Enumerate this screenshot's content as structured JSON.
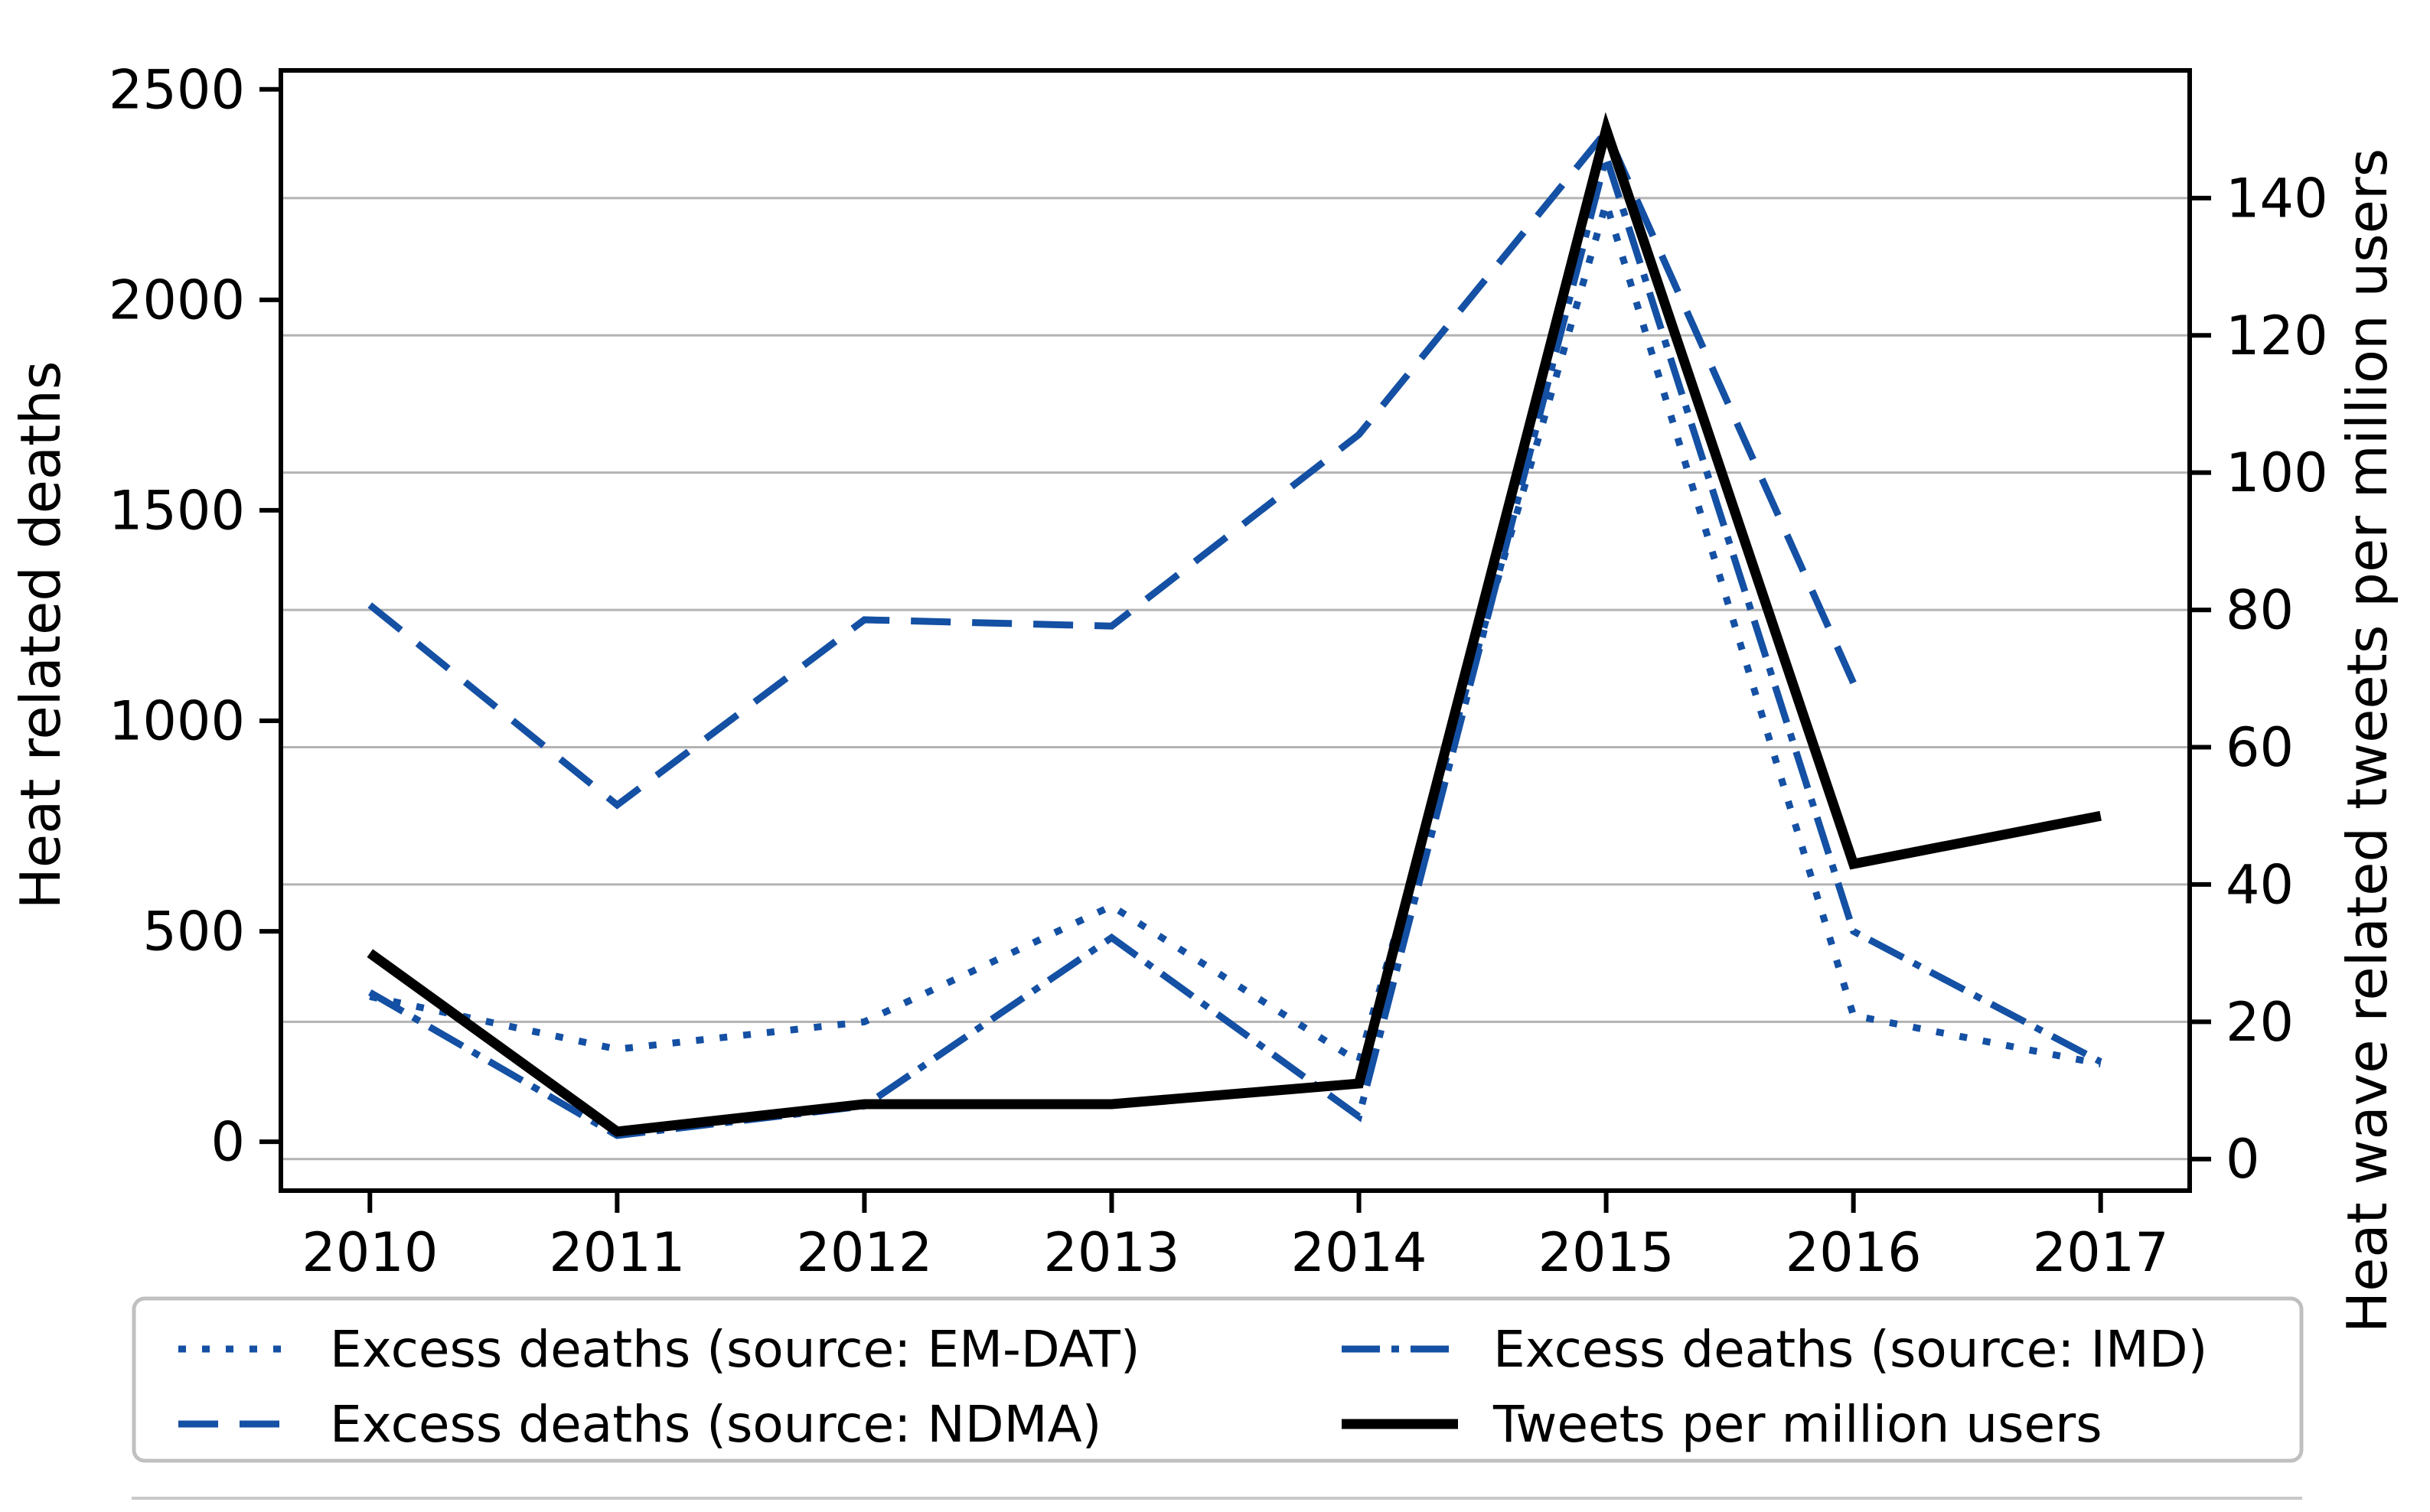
{
  "page": {
    "background": "#ffffff"
  },
  "colors": {
    "series_blue": "#1450a3",
    "series_black": "#000000",
    "gridline": "#b3b3b3",
    "axis": "#000000",
    "legend_border": "#c0c0c0",
    "crop_line": "#c9c9c9"
  },
  "chart_data": {
    "type": "line",
    "title": "",
    "xlabel": "",
    "ylabel_left": "Heat related deaths",
    "ylabel_right": "Heat wave related tweets per million users",
    "x": [
      2010,
      2011,
      2012,
      2013,
      2014,
      2015,
      2016,
      2017
    ],
    "xtick_labels": [
      "2010",
      "2011",
      "2012",
      "2013",
      "2014",
      "2015",
      "2016",
      "2017"
    ],
    "yticks_left": [
      0,
      500,
      1000,
      1500,
      2000,
      2500
    ],
    "yticks_right": [
      0,
      20,
      40,
      60,
      80,
      100,
      120,
      140
    ],
    "xlim": [
      2009.64,
      2017.36
    ],
    "ylim_left": [
      -116,
      2545
    ],
    "ylim_right": [
      -4.6,
      158.6
    ],
    "grid": {
      "axis": "right",
      "orientation": "horizontal",
      "on": true
    },
    "legend_position": "bottom, 2 columns",
    "series": [
      {
        "name": "Excess deaths (source: EM-DAT)",
        "axis": "left",
        "style": "dotted",
        "color": "#1450a3",
        "values": [
          345,
          220,
          285,
          560,
          190,
          2230,
          300,
          185
        ]
      },
      {
        "name": "Excess deaths (source: NDMA)",
        "axis": "left",
        "style": "dashed",
        "color": "#1450a3",
        "values": [
          1275,
          800,
          1240,
          1225,
          1680,
          2400,
          1090,
          null
        ]
      },
      {
        "name": "Excess deaths (source: IMD)",
        "axis": "left",
        "style": "dashdot",
        "color": "#1450a3",
        "values": [
          355,
          15,
          85,
          485,
          60,
          2340,
          500,
          190
        ]
      },
      {
        "name": "Tweets per million users",
        "axis": "right",
        "style": "solid",
        "color": "#000000",
        "values": [
          30,
          4,
          8,
          8,
          11,
          150,
          43,
          50
        ]
      }
    ],
    "legend_entries": [
      "Excess deaths (source: EM-DAT)",
      "Excess deaths (source: NDMA)",
      "Excess deaths (source: IMD)",
      "Tweets per million users"
    ]
  }
}
